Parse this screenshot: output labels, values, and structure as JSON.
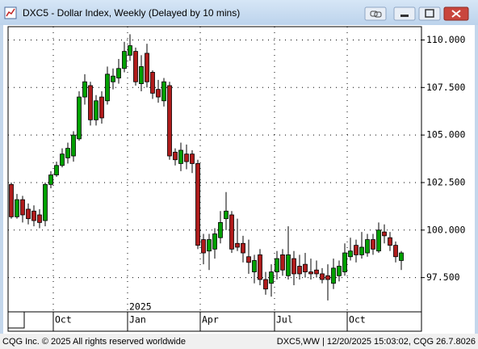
{
  "window_title": "DXC5 - Dollar Index, Weekly (Delayed by 10 mins)",
  "footer": {
    "left": "CQG Inc. © 2025 All rights reserved worldwide",
    "right": "DXC5,WW | 12/20/2025 15:03:02, CQG 26.7.8026"
  },
  "chart_data": {
    "type": "candlestick",
    "up_color": "#00a000",
    "down_color": "#b01c1c",
    "grid": true,
    "ylim": [
      95.7,
      110.7
    ],
    "yticks": [
      {
        "value": 97.5,
        "label": "97.500"
      },
      {
        "value": 100,
        "label": "100.000"
      },
      {
        "value": 102.5,
        "label": "102.500"
      },
      {
        "value": 105,
        "label": "105.000"
      },
      {
        "value": 107.5,
        "label": "107.500"
      },
      {
        "value": 110,
        "label": "110.000"
      }
    ],
    "xlim": [
      -0.57,
      72.57
    ],
    "xticks": [
      {
        "value": 7.43,
        "label": "Oct"
      },
      {
        "value": 20.57,
        "label": "Jan"
      },
      {
        "value": 33.43,
        "label": "Apr"
      },
      {
        "value": 46.57,
        "label": "Jul"
      },
      {
        "value": 59.43,
        "label": "Oct"
      }
    ],
    "year_label": "2025",
    "open": [
      102.4,
      100.7,
      101.6,
      101.1,
      101.0,
      100.8,
      100.5,
      102.4,
      102.9,
      103.4,
      103.8,
      103.9,
      104.8,
      107.0,
      107.6,
      105.8,
      107.0,
      106.8,
      107.8,
      108.0,
      108.5,
      109.2,
      109.4,
      107.7,
      109.3,
      108.3,
      107.4,
      106.8,
      107.6,
      104.1,
      103.5,
      104.0,
      104.0,
      103.5,
      99.5,
      98.9,
      99.0,
      99.6,
      100.6,
      100.8,
      99.3,
      99.3,
      98.6,
      97.8,
      98.7,
      97.4,
      97.2,
      97.8,
      98.7,
      97.6,
      98.5,
      98.1,
      98.2,
      97.8,
      97.9,
      97.7,
      97.6,
      97.2,
      97.6,
      97.8,
      98.6,
      99.2,
      98.7,
      98.8,
      99.5,
      98.9,
      99.9,
      99.6,
      99.2,
      98.4
    ],
    "high": [
      102.5,
      101.9,
      101.8,
      101.4,
      101.3,
      101.1,
      102.5,
      103.1,
      103.6,
      104.3,
      104.6,
      105.2,
      107.3,
      108.2,
      107.8,
      107.1,
      107.3,
      108.6,
      108.5,
      109.0,
      109.9,
      110.3,
      109.6,
      109.2,
      109.8,
      108.4,
      107.9,
      108.0,
      107.8,
      104.3,
      104.6,
      104.5,
      104.2,
      103.7,
      99.8,
      99.8,
      100.1,
      101.0,
      102.0,
      101.0,
      100.6,
      99.7,
      99.5,
      98.7,
      99.0,
      97.8,
      98.2,
      98.9,
      99.0,
      100.2,
      98.9,
      98.7,
      98.8,
      98.5,
      98.4,
      98.0,
      98.2,
      98.5,
      98.4,
      99.3,
      99.6,
      99.5,
      99.9,
      99.8,
      99.8,
      100.4,
      100.3,
      99.9,
      99.4,
      98.9
    ],
    "low": [
      100.6,
      100.6,
      100.4,
      100.3,
      100.2,
      100.1,
      100.2,
      102.2,
      102.8,
      103.3,
      103.5,
      103.6,
      104.7,
      106.6,
      105.5,
      105.5,
      105.6,
      106.6,
      107.4,
      107.7,
      108.3,
      108.9,
      107.6,
      107.3,
      107.5,
      106.9,
      106.7,
      106.5,
      103.7,
      103.4,
      103.1,
      103.2,
      103.0,
      99.0,
      98.2,
      97.9,
      98.5,
      99.3,
      100.0,
      98.8,
      98.9,
      98.3,
      97.7,
      97.2,
      97.1,
      96.6,
      96.5,
      97.4,
      97.6,
      97.4,
      97.1,
      97.4,
      97.5,
      97.4,
      97.5,
      97.2,
      96.3,
      96.9,
      97.3,
      97.6,
      98.4,
      98.3,
      98.5,
      98.6,
      98.7,
      98.8,
      99.3,
      98.9,
      98.3,
      97.9
    ],
    "close": [
      100.7,
      101.6,
      100.8,
      100.6,
      100.5,
      100.4,
      102.4,
      102.9,
      103.4,
      104.0,
      104.3,
      105.0,
      107.0,
      107.8,
      105.8,
      106.8,
      105.9,
      108.2,
      108.1,
      108.5,
      109.4,
      109.7,
      107.8,
      108.6,
      107.8,
      107.2,
      107.0,
      107.8,
      103.9,
      103.7,
      104.2,
      103.6,
      103.5,
      99.2,
      98.8,
      99.5,
      99.8,
      100.4,
      101.0,
      99.0,
      99.1,
      98.8,
      98.3,
      98.4,
      97.4,
      96.9,
      97.8,
      98.5,
      97.9,
      98.7,
      97.7,
      97.7,
      97.8,
      97.7,
      97.7,
      97.4,
      97.4,
      98.0,
      98.1,
      98.8,
      98.9,
      98.7,
      99.1,
      99.5,
      99.0,
      100.0,
      99.7,
      99.2,
      98.6,
      98.8
    ]
  }
}
